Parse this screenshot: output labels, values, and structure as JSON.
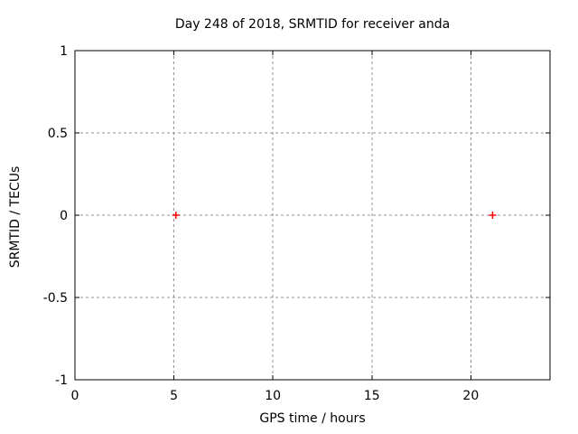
{
  "title": "Day 248 of 2018, SRMTID for receiver anda",
  "chart_data": {
    "type": "scatter",
    "title": "Day 248 of 2018, SRMTID for receiver anda",
    "xlabel": "GPS time / hours",
    "ylabel": "SRMTID / TECUs",
    "xlim": [
      0,
      24
    ],
    "ylim": [
      -1,
      1
    ],
    "xticks": {
      "values": [
        0,
        5,
        10,
        15,
        20
      ],
      "labels": [
        "0",
        "5",
        "10",
        "15",
        "20"
      ]
    },
    "yticks": {
      "values": [
        -1,
        -0.5,
        0,
        0.5,
        1
      ],
      "labels": [
        "-1",
        "-0.5",
        "0",
        "0.5",
        "1"
      ]
    },
    "grid": true,
    "legend": "none",
    "series": [
      {
        "marker": "plus",
        "color": "#ff0000",
        "points": [
          {
            "x": 5.1,
            "y": 0
          },
          {
            "x": 21.1,
            "y": 0
          }
        ]
      }
    ]
  },
  "colors": {
    "background": "#ffffff",
    "border": "#000000",
    "grid": "#909090",
    "text": "#000000",
    "marker": "#ff0000"
  }
}
